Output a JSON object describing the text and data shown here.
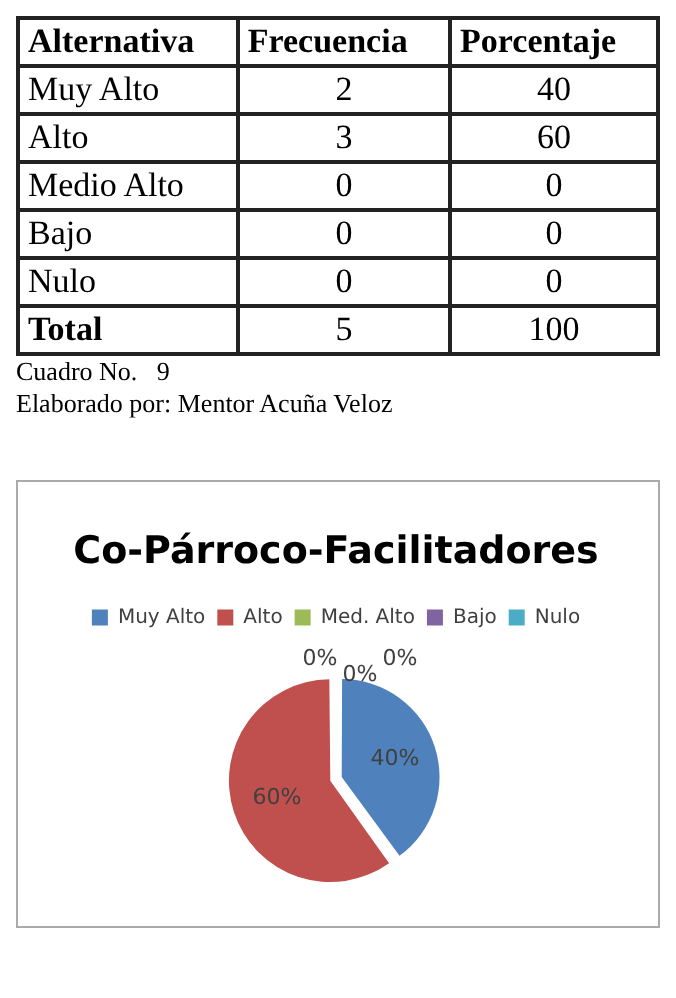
{
  "chart_data": [
    {
      "type": "other",
      "annotations": [
        "Alternativa",
        "Frecuencia",
        "Porcentaje",
        "Muy Alto",
        "2",
        "40",
        "Alto",
        "3",
        "60",
        "Medio Alto",
        "0",
        "0",
        "Bajo",
        "0",
        "0",
        "Nulo",
        "0",
        "0",
        "Total",
        "5",
        "100",
        "Cuadro No.   9",
        "Elaborado por: Mentor Acuña Veloz"
      ]
    },
    {
      "type": "pie",
      "title": "Co-Párroco-Facilitadores",
      "categories": [
        "Muy Alto",
        "Alto",
        "Med. Alto",
        "Bajo",
        "Nulo"
      ],
      "values": [
        40,
        60,
        0,
        0,
        0
      ],
      "colors": [
        "#4f81bd",
        "#c0504d",
        "#9bbb59",
        "#8064a2",
        "#4bacc6"
      ],
      "value_labels": [
        "40%",
        "60%",
        "0%",
        "0%",
        "0%"
      ],
      "legend": "top"
    }
  ]
}
